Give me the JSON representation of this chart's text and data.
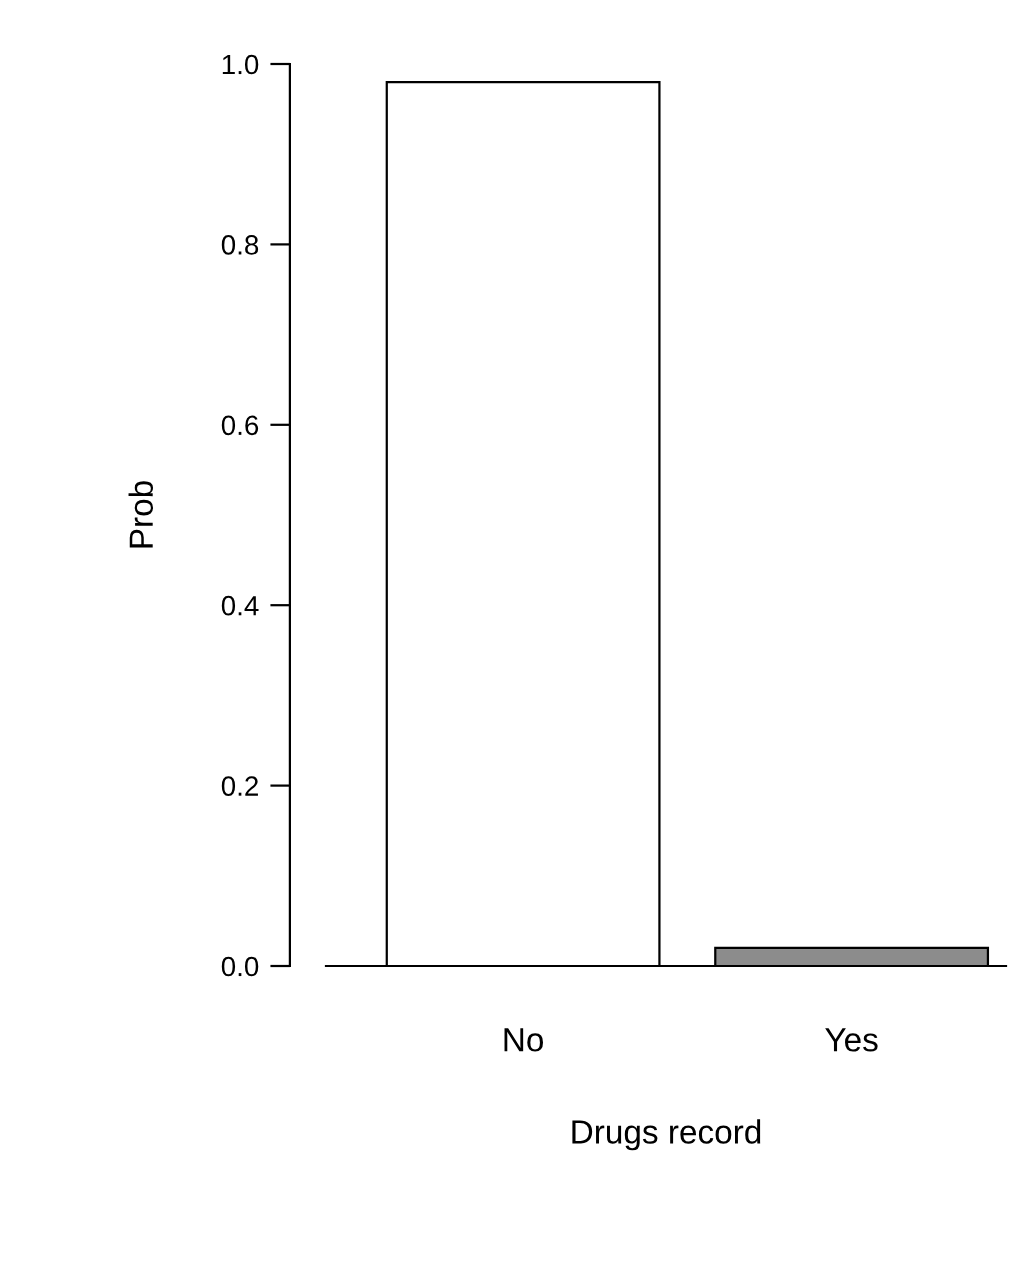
{
  "chart_data": {
    "type": "bar",
    "xlabel": "Drugs record",
    "ylabel": "Prob",
    "categories": [
      "No",
      "Yes"
    ],
    "values": [
      0.98,
      0.02
    ],
    "colors": [
      "#ffffff",
      "#8c8c8c"
    ],
    "ylim": [
      0,
      1
    ],
    "yticks": [
      {
        "value": 0,
        "label": "0.0"
      },
      {
        "value": 0.2,
        "label": "0.2"
      },
      {
        "value": 0.4,
        "label": "0.4"
      },
      {
        "value": 0.6,
        "label": "0.6"
      },
      {
        "value": 0.8,
        "label": "0.8"
      },
      {
        "value": 1,
        "label": "1.0"
      }
    ]
  }
}
